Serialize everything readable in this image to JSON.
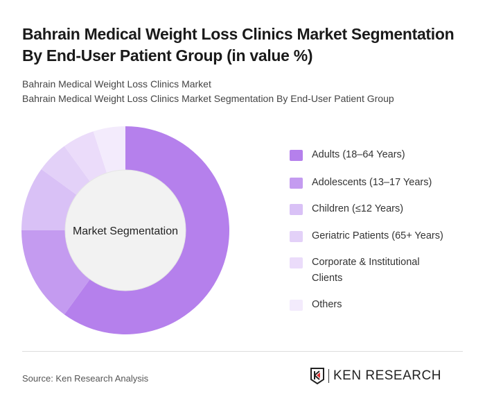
{
  "title": "Bahrain Medical Weight Loss Clinics Market Segmentation By End-User Patient Group (in value %)",
  "subtitle_1": "Bahrain Medical Weight Loss Clinics Market",
  "subtitle_2": "Bahrain Medical Weight Loss Clinics Market Segmentation By End-User Patient Group",
  "source": "Source: Ken Research Analysis",
  "logo_text": "KEN RESEARCH",
  "chart_data": {
    "type": "pie",
    "variant": "donut",
    "center_label": "Market Segmentation",
    "categories": [
      "Adults (18–64 Years)",
      "Adolescents (13–17 Years)",
      "Children (≤12 Years)",
      "Geriatric Patients (65+ Years)",
      "Corporate & Institutional Clients",
      "Others"
    ],
    "values": [
      60,
      15,
      10,
      5,
      5,
      5
    ],
    "colors": [
      "#b580ec",
      "#c49bf0",
      "#d9c1f6",
      "#e3d1f8",
      "#ebdcfa",
      "#f3ebfc"
    ],
    "legend_position": "right"
  }
}
